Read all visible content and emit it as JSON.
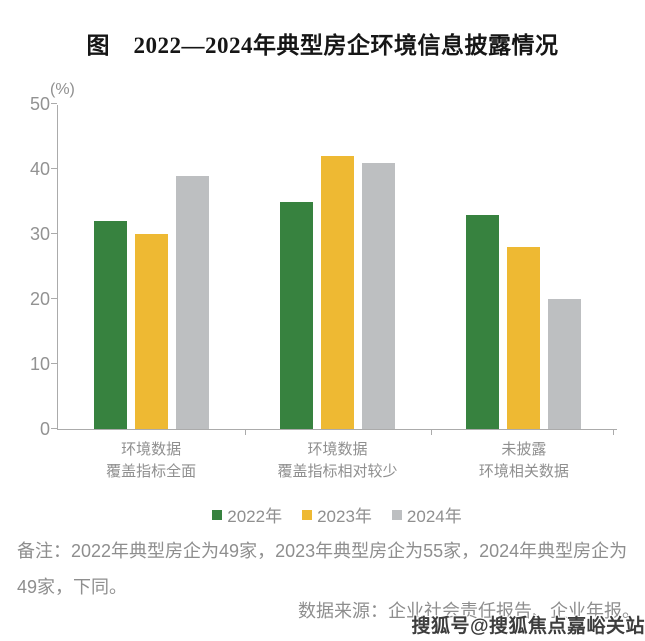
{
  "title": "图　2022—2024年典型房企环境信息披露情况",
  "chart_data": {
    "type": "bar",
    "title": "图　2022—2024年典型房企环境信息披露情况",
    "unit_label": "(%)",
    "categories": [
      "环境数据 覆盖指标全面",
      "环境数据 覆盖指标相对较少",
      "未披露 环境相关数据"
    ],
    "category_lines": [
      [
        "环境数据",
        "覆盖指标全面"
      ],
      [
        "环境数据",
        "覆盖指标相对较少"
      ],
      [
        "未披露",
        "环境相关数据"
      ]
    ],
    "series": [
      {
        "name": "2022年",
        "color": "#37823F",
        "values": [
          32,
          35,
          33
        ]
      },
      {
        "name": "2023年",
        "color": "#EEB933",
        "values": [
          30,
          42,
          28
        ]
      },
      {
        "name": "2024年",
        "color": "#BDBFC1",
        "values": [
          39,
          41,
          20
        ]
      }
    ],
    "ylim": [
      0,
      50
    ],
    "yticks": [
      0,
      10,
      20,
      30,
      40,
      50
    ],
    "xlabel": "",
    "ylabel": "(%)",
    "grid": false,
    "legend_position": "bottom"
  },
  "footnote": {
    "text": "备注：2022年典型房企为49家，2023年典型房企为55家，2024年典型房企为49家，下同。"
  },
  "source": {
    "text": "数据来源：企业社会责任报告、企业年报。"
  },
  "watermark": {
    "text": "搜狐号@搜狐焦点嘉峪关站"
  },
  "colors": {
    "axis": "#ABABAB",
    "tick_label": "#929292",
    "category_label": "#8F8F8F",
    "note_text": "#8E8E8E",
    "title_text": "#161616",
    "watermark_text": "#3D3D3D",
    "background": "#FFFFFF"
  }
}
